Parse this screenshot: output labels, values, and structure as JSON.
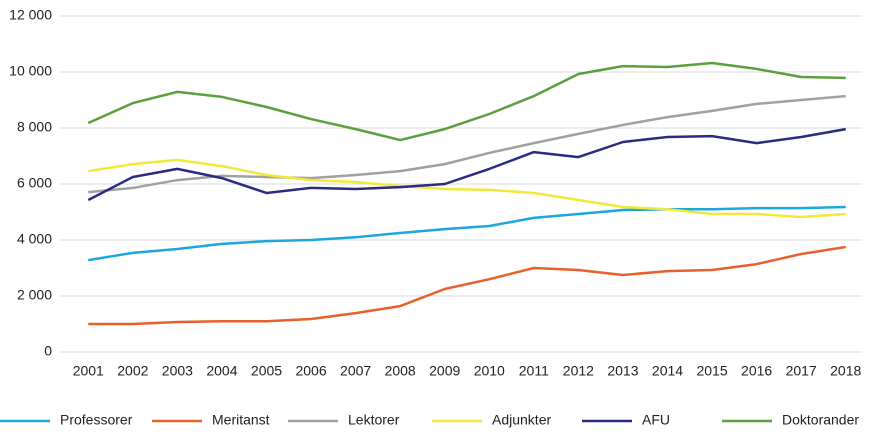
{
  "chart_data": {
    "type": "line",
    "categories": [
      "2001",
      "2002",
      "2003",
      "2004",
      "2005",
      "2006",
      "2007",
      "2008",
      "2009",
      "2010",
      "2011",
      "2012",
      "2013",
      "2014",
      "2015",
      "2016",
      "2017",
      "2018"
    ],
    "series": [
      {
        "name": "Professorer",
        "color": "#1ea6df",
        "values": [
          3280,
          3540,
          3680,
          3860,
          3960,
          4000,
          4100,
          4250,
          4390,
          4500,
          4790,
          4930,
          5070,
          5100,
          5100,
          5140,
          5140,
          5180
        ]
      },
      {
        "name": "Meritanst",
        "color": "#e8602c",
        "values": [
          1000,
          1000,
          1070,
          1100,
          1100,
          1180,
          1390,
          1640,
          2250,
          2600,
          3000,
          2930,
          2750,
          2890,
          2930,
          3140,
          3500,
          3750
        ]
      },
      {
        "name": "Lektorer",
        "color": "#a0a0a0",
        "values": [
          5710,
          5860,
          6140,
          6290,
          6250,
          6210,
          6320,
          6460,
          6710,
          7110,
          7460,
          7790,
          8110,
          8390,
          8610,
          8860,
          9000,
          9140
        ]
      },
      {
        "name": "Adjunkter",
        "color": "#f2e83a",
        "values": [
          6460,
          6710,
          6860,
          6640,
          6320,
          6140,
          6070,
          5930,
          5820,
          5790,
          5680,
          5430,
          5180,
          5100,
          4930,
          4930,
          4820,
          4930
        ]
      },
      {
        "name": "AFU",
        "color": "#2b2b82",
        "values": [
          5430,
          6250,
          6540,
          6210,
          5680,
          5860,
          5820,
          5890,
          6000,
          6540,
          7140,
          6960,
          7500,
          7680,
          7710,
          7460,
          7680,
          7960
        ]
      },
      {
        "name": "Doktorander",
        "color": "#5aa03c",
        "values": [
          8180,
          8890,
          9290,
          9110,
          8750,
          8320,
          7960,
          7570,
          7960,
          8500,
          9140,
          9930,
          10210,
          10180,
          10320,
          10110,
          9820,
          9790
        ]
      }
    ],
    "ylim": [
      0,
      12000
    ],
    "yticks": [
      0,
      {
        "value": 2000,
        "label": "2 000"
      },
      {
        "value": 4000,
        "label": "4 000"
      },
      {
        "value": 6000,
        "label": "6 000"
      },
      {
        "value": 8000,
        "label": "8 000"
      },
      {
        "value": 10000,
        "label": "10 000"
      },
      {
        "value": 12000,
        "label": "12 000"
      }
    ],
    "grid": true,
    "legend": "bottom"
  }
}
